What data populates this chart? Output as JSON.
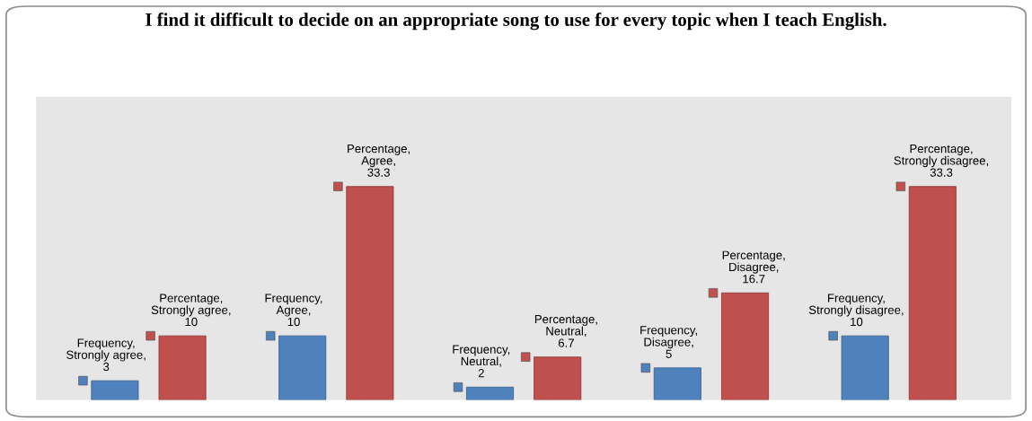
{
  "chart_data": {
    "type": "bar",
    "title": "I find it difficult to decide on an appropriate song to use for every topic when I teach English.",
    "categories": [
      null,
      null,
      null,
      null,
      null
    ],
    "tick_labels": false,
    "grid": false,
    "series": [
      {
        "color": "#4f81bd",
        "values": [
          3,
          10,
          2,
          5,
          10
        ],
        "value_labels": [
          "Frequency, Strongly agree, 3",
          "Frequency, Agree, 10",
          "Frequency, Neutral, 2",
          "Frequency, Disagree, 5",
          "Frequency, Strongly disagree, 10"
        ]
      },
      {
        "color": "#c0504d",
        "values": [
          10,
          33.3,
          6.7,
          16.7,
          33.3
        ],
        "value_labels": [
          "Percentage, Strongly agree, 10",
          "Percentage, Agree, 33.3",
          "Percentage, Neutral, 6.7",
          "Percentage, Disagree, 16.7",
          "Percentage, Strongly disagree, 33.3"
        ]
      }
    ]
  }
}
